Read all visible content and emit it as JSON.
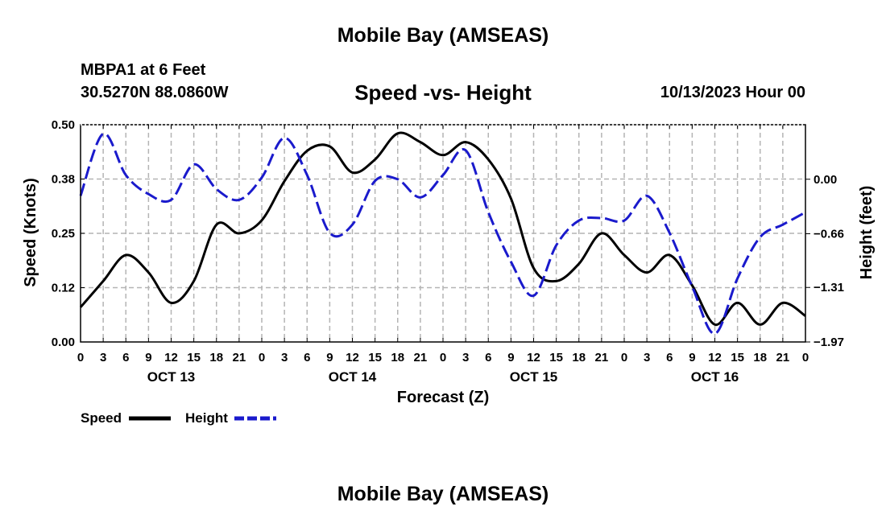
{
  "page": {
    "title": "Mobile Bay (AMSEAS)",
    "station": "MBPA1 at 6 Feet",
    "coords": "30.5270N  88.0860W",
    "date": "10/13/2023 Hour 00",
    "second_title": "Mobile Bay (AMSEAS)"
  },
  "chart_data": {
    "type": "line",
    "title": "Speed -vs- Height",
    "xlabel": "Forecast (Z)",
    "ylabel_left": "Speed (Knots)",
    "ylabel_right": "Height (feet)",
    "x_range_hours": [
      0,
      96
    ],
    "ylim_left": [
      0,
      0.5
    ],
    "ylim_right": [
      -1.97,
      0.66
    ],
    "yticks_left": [
      "0.00",
      "0.12",
      "0.25",
      "0.38",
      "0.50"
    ],
    "yticks_right": [
      "−1.97",
      "−1.31",
      "−0.66",
      "0.00"
    ],
    "yticks_right_values": [
      -1.97,
      -1.31,
      -0.66,
      0.0
    ],
    "xtick_labels": [
      "0",
      "3",
      "6",
      "9",
      "12",
      "15",
      "18",
      "21",
      "0",
      "3",
      "6",
      "9",
      "12",
      "15",
      "18",
      "21",
      "0",
      "3",
      "6",
      "9",
      "12",
      "15",
      "18",
      "21",
      "0",
      "3",
      "6",
      "9",
      "12",
      "15",
      "18",
      "21",
      "0"
    ],
    "day_labels": [
      {
        "label": "OCT 13",
        "hour": 12
      },
      {
        "label": "OCT 14",
        "hour": 36
      },
      {
        "label": "OCT 15",
        "hour": 60
      },
      {
        "label": "OCT 16",
        "hour": 84
      }
    ],
    "grid": true,
    "legend_position": "bottom-left",
    "series": [
      {
        "name": "Speed",
        "axis": "left",
        "color": "#000000",
        "dash": "solid",
        "x": [
          0,
          3,
          6,
          9,
          12,
          15,
          18,
          21,
          24,
          27,
          30,
          33,
          36,
          39,
          42,
          45,
          48,
          51,
          54,
          57,
          60,
          63,
          66,
          69,
          72,
          75,
          78,
          81,
          84,
          87,
          90,
          93,
          96
        ],
        "y": [
          0.08,
          0.14,
          0.2,
          0.16,
          0.09,
          0.14,
          0.27,
          0.25,
          0.28,
          0.37,
          0.44,
          0.45,
          0.39,
          0.42,
          0.48,
          0.46,
          0.43,
          0.46,
          0.42,
          0.33,
          0.17,
          0.14,
          0.18,
          0.25,
          0.2,
          0.16,
          0.2,
          0.13,
          0.04,
          0.09,
          0.04,
          0.09,
          0.06
        ]
      },
      {
        "name": "Height",
        "axis": "right",
        "color": "#1a1acc",
        "dash": "dashed",
        "x": [
          0,
          3,
          6,
          9,
          12,
          15,
          18,
          21,
          24,
          27,
          30,
          33,
          36,
          39,
          42,
          45,
          48,
          51,
          54,
          57,
          60,
          63,
          66,
          69,
          72,
          75,
          78,
          81,
          84,
          87,
          90,
          93,
          96
        ],
        "y": [
          -0.2,
          0.55,
          0.05,
          -0.18,
          -0.25,
          0.18,
          -0.12,
          -0.25,
          0.02,
          0.5,
          0.05,
          -0.65,
          -0.55,
          -0.02,
          0.0,
          -0.22,
          0.05,
          0.35,
          -0.4,
          -1.0,
          -1.41,
          -0.8,
          -0.5,
          -0.47,
          -0.5,
          -0.2,
          -0.65,
          -1.3,
          -1.87,
          -1.2,
          -0.7,
          -0.55,
          -0.4
        ]
      }
    ]
  }
}
